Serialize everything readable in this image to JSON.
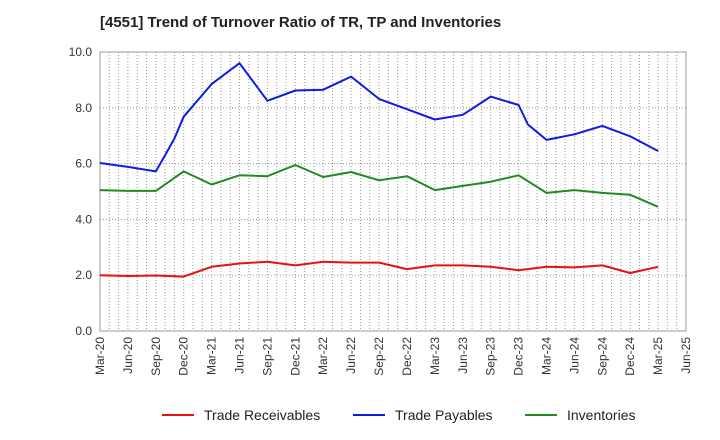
{
  "chart_data": {
    "type": "line",
    "title": "[4551]  Trend of Turnover Ratio of TR, TP and Inventories",
    "xlabel": "",
    "ylabel": "",
    "ylim": [
      0,
      10
    ],
    "yticks": [
      "0.0",
      "2.0",
      "4.0",
      "6.0",
      "8.0",
      "10.0"
    ],
    "grid": true,
    "legend_position": "bottom",
    "categories": [
      "Mar-20",
      "Jun-20",
      "Sep-20",
      "Dec-20",
      "Mar-21",
      "Jun-21",
      "Sep-21",
      "Dec-21",
      "Mar-22",
      "Jun-22",
      "Sep-22",
      "Dec-22",
      "Mar-23",
      "Jun-23",
      "Sep-23",
      "Dec-23",
      "Mar-24",
      "Jun-24",
      "Sep-24",
      "Dec-24",
      "Mar-25",
      "Jun-25"
    ],
    "x": [
      "2020-03",
      "2020-04",
      "2020-05",
      "2020-06",
      "2020-07",
      "2020-08",
      "2020-09",
      "2020-10",
      "2020-11",
      "2020-12",
      "2021-01",
      "2021-02",
      "2021-03",
      "2021-04",
      "2021-05",
      "2021-06",
      "2021-07",
      "2021-08",
      "2021-09",
      "2021-10",
      "2021-11",
      "2021-12",
      "2022-01",
      "2022-02",
      "2022-03",
      "2022-04",
      "2022-05",
      "2022-06",
      "2022-07",
      "2022-08",
      "2022-09",
      "2022-10",
      "2022-11",
      "2022-12",
      "2023-01",
      "2023-02",
      "2023-03",
      "2023-04",
      "2023-05",
      "2023-06",
      "2023-07",
      "2023-08",
      "2023-09",
      "2023-10",
      "2023-11",
      "2023-12",
      "2024-01",
      "2024-02",
      "2024-03",
      "2024-04",
      "2024-05",
      "2024-06",
      "2024-07",
      "2024-08",
      "2024-09",
      "2024-10",
      "2024-11",
      "2024-12",
      "2025-01",
      "2025-02",
      "2025-03"
    ],
    "series": [
      {
        "name": "Trade Receivables",
        "color": "#e8110f",
        "values": [
          2.0,
          null,
          null,
          1.97,
          null,
          null,
          1.99,
          null,
          null,
          1.95,
          null,
          null,
          2.3,
          null,
          null,
          2.42,
          null,
          null,
          2.48,
          null,
          null,
          2.35,
          null,
          null,
          2.48,
          null,
          null,
          2.45,
          null,
          null,
          2.45,
          null,
          null,
          2.22,
          null,
          null,
          2.35,
          null,
          null,
          2.35,
          null,
          null,
          2.3,
          null,
          null,
          2.18,
          null,
          null,
          2.3,
          null,
          null,
          2.28,
          null,
          null,
          2.35,
          null,
          null,
          2.08,
          null,
          null,
          2.3
        ]
      },
      {
        "name": "Trade Payables",
        "color": "#0f1be0",
        "values": [
          6.02,
          null,
          null,
          5.88,
          null,
          null,
          5.72,
          6.3,
          6.9,
          7.68,
          null,
          null,
          8.85,
          null,
          null,
          9.6,
          null,
          null,
          8.25,
          null,
          null,
          8.62,
          null,
          null,
          8.65,
          null,
          null,
          9.12,
          null,
          null,
          8.32,
          null,
          null,
          7.95,
          null,
          null,
          7.58,
          null,
          null,
          7.75,
          null,
          null,
          8.4,
          null,
          null,
          8.1,
          7.4,
          null,
          6.85,
          null,
          null,
          7.05,
          null,
          null,
          7.35,
          null,
          null,
          6.98,
          null,
          null,
          6.45
        ]
      },
      {
        "name": "Inventories",
        "color": "#1e8c1e",
        "values": [
          5.05,
          null,
          null,
          5.02,
          null,
          null,
          5.02,
          null,
          null,
          5.72,
          null,
          null,
          5.25,
          null,
          null,
          5.58,
          null,
          null,
          5.55,
          null,
          null,
          5.95,
          null,
          null,
          5.52,
          null,
          null,
          5.7,
          null,
          null,
          5.4,
          null,
          null,
          5.55,
          null,
          null,
          5.05,
          null,
          null,
          5.2,
          null,
          null,
          5.35,
          null,
          null,
          5.58,
          null,
          null,
          4.95,
          null,
          null,
          5.05,
          null,
          null,
          4.95,
          null,
          null,
          4.88,
          null,
          null,
          4.45
        ]
      }
    ]
  }
}
